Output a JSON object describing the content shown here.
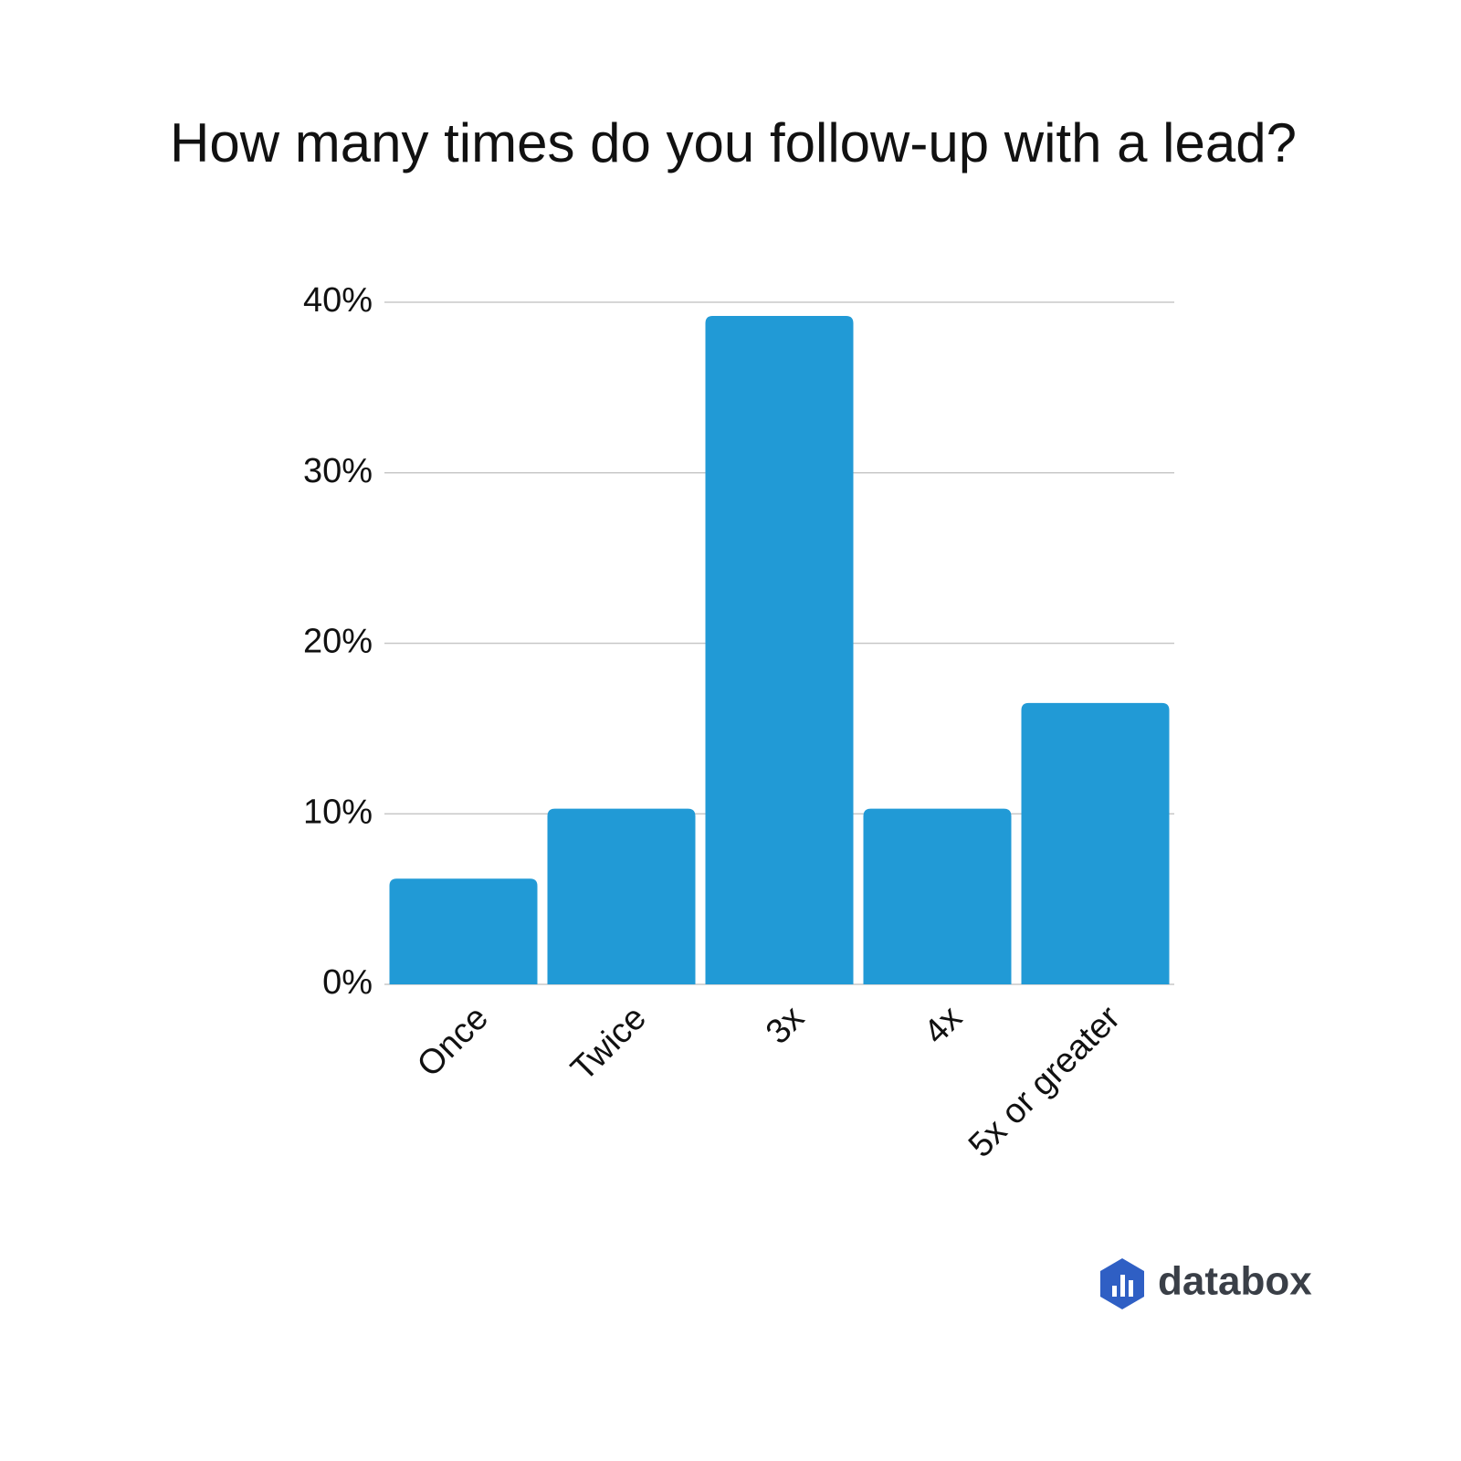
{
  "chart_data": {
    "type": "bar",
    "title": "How many times do you follow-up with a lead?",
    "categories": [
      "Once",
      "Twice",
      "3x",
      "4x",
      "5x or greater"
    ],
    "values": [
      6.2,
      10.3,
      39.2,
      10.3,
      16.5
    ],
    "color": "#219ad6",
    "ylim": [
      0,
      40
    ],
    "yticks": [
      {
        "value": 0,
        "label": "0%"
      },
      {
        "value": 10,
        "label": "10%"
      },
      {
        "value": 20,
        "label": "20%"
      },
      {
        "value": 30,
        "label": "30%"
      },
      {
        "value": 40,
        "label": "40%"
      }
    ],
    "grid": true,
    "watermark": "databox"
  }
}
